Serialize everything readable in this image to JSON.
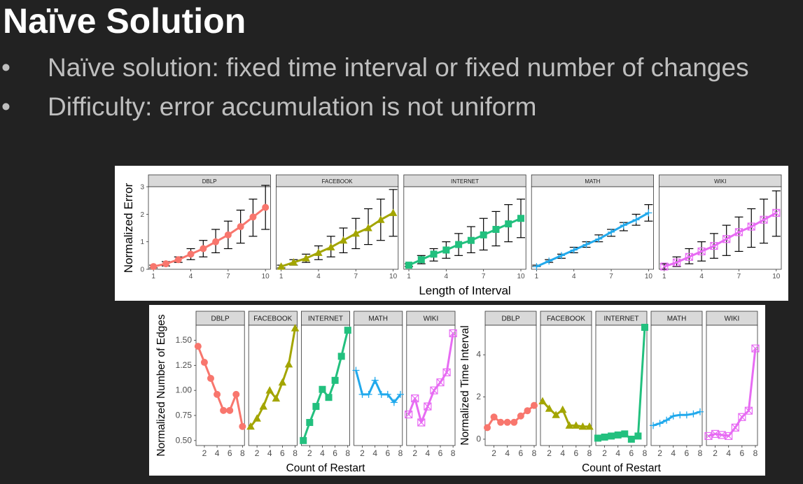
{
  "slide": {
    "title": "Naïve Solution",
    "bullets": [
      {
        "marker": "•",
        "text": "Naïve solution: fixed time interval or fixed number of changes"
      },
      {
        "marker": "•",
        "text": "Difficulty: error accumulation is not uniform"
      }
    ]
  },
  "colors": {
    "DBLP": "#f8766d",
    "FACEBOOK": "#a3a500",
    "INTERNET": "#22c07e",
    "MATH": "#21a9ec",
    "WIKI": "#e76bf3"
  },
  "chart_data": [
    {
      "type": "line",
      "title": "",
      "xlabel": "Length of Interval",
      "ylabel": "Normalized Error",
      "panels": [
        "DBLP",
        "FACEBOOK",
        "INTERNET",
        "MATH",
        "WIKI"
      ],
      "xlim": [
        1,
        10
      ],
      "ylim": [
        0,
        3
      ],
      "xticks": [
        1,
        4,
        7,
        10
      ],
      "yticks": [
        0,
        1,
        2,
        3
      ],
      "x": [
        1,
        2,
        3,
        4,
        5,
        6,
        7,
        8,
        9,
        10
      ],
      "error_bars": true,
      "series": [
        {
          "name": "DBLP",
          "values": [
            0.1,
            0.2,
            0.35,
            0.55,
            0.75,
            1.0,
            1.25,
            1.55,
            1.9,
            2.25
          ],
          "err_low": [
            0.05,
            0.12,
            0.25,
            0.35,
            0.45,
            0.6,
            0.75,
            0.95,
            1.2,
            1.45
          ],
          "err_high": [
            0.15,
            0.28,
            0.45,
            0.75,
            1.05,
            1.45,
            1.75,
            2.15,
            2.55,
            3.05
          ]
        },
        {
          "name": "FACEBOOK",
          "values": [
            0.1,
            0.25,
            0.4,
            0.6,
            0.8,
            1.05,
            1.3,
            1.5,
            1.8,
            2.05
          ],
          "err_low": [
            0.05,
            0.15,
            0.25,
            0.35,
            0.45,
            0.6,
            0.75,
            0.9,
            1.05,
            1.2
          ],
          "err_high": [
            0.15,
            0.35,
            0.55,
            0.85,
            1.2,
            1.5,
            1.85,
            2.2,
            2.55,
            2.9
          ]
        },
        {
          "name": "INTERNET",
          "values": [
            0.15,
            0.35,
            0.55,
            0.7,
            0.9,
            1.05,
            1.25,
            1.45,
            1.65,
            1.85
          ],
          "err_low": [
            0.1,
            0.2,
            0.3,
            0.4,
            0.5,
            0.6,
            0.7,
            0.85,
            1.0,
            1.15
          ],
          "err_high": [
            0.2,
            0.5,
            0.75,
            1.0,
            1.3,
            1.55,
            1.85,
            2.1,
            2.35,
            2.55
          ]
        },
        {
          "name": "MATH",
          "values": [
            0.1,
            0.3,
            0.5,
            0.7,
            0.9,
            1.1,
            1.35,
            1.6,
            1.8,
            2.05
          ],
          "err_low": [
            0.1,
            0.25,
            0.4,
            0.6,
            0.8,
            1.0,
            1.2,
            1.4,
            1.6,
            1.75
          ],
          "err_high": [
            0.15,
            0.35,
            0.55,
            0.8,
            1.0,
            1.25,
            1.45,
            1.7,
            2.0,
            2.35
          ]
        },
        {
          "name": "WIKI",
          "values": [
            0.1,
            0.25,
            0.45,
            0.65,
            0.85,
            1.1,
            1.35,
            1.55,
            1.8,
            2.05
          ],
          "err_low": [
            0.0,
            0.1,
            0.2,
            0.3,
            0.4,
            0.5,
            0.65,
            0.8,
            0.95,
            1.2
          ],
          "err_high": [
            0.2,
            0.45,
            0.75,
            1.0,
            1.3,
            1.6,
            1.9,
            2.2,
            2.55,
            2.85
          ]
        }
      ]
    },
    {
      "type": "line",
      "title": "",
      "xlabel": "Count of Restart",
      "ylabel": "Normalized Number of Edges",
      "panels": [
        "DBLP",
        "FACEBOOK",
        "INTERNET",
        "MATH",
        "WIKI"
      ],
      "xlim": [
        1,
        8
      ],
      "ylim": [
        0.45,
        1.65
      ],
      "xticks": [
        2,
        4,
        6,
        8
      ],
      "yticks": [
        0.5,
        0.75,
        1.0,
        1.25,
        1.5
      ],
      "ytick_labels": [
        "0.50",
        "0.75",
        "1.00",
        "1.25",
        "1.50"
      ],
      "x": [
        1,
        2,
        3,
        4,
        5,
        6,
        7,
        8
      ],
      "series": [
        {
          "name": "DBLP",
          "values": [
            1.44,
            1.28,
            1.12,
            0.96,
            0.8,
            0.8,
            0.96,
            0.64
          ]
        },
        {
          "name": "FACEBOOK",
          "values": [
            0.64,
            0.72,
            0.84,
            1.0,
            0.92,
            1.08,
            1.26,
            1.62
          ]
        },
        {
          "name": "INTERNET",
          "values": [
            0.5,
            0.68,
            0.84,
            1.01,
            0.93,
            1.1,
            1.34,
            1.6
          ]
        },
        {
          "name": "MATH",
          "values": [
            1.2,
            0.96,
            0.96,
            1.1,
            0.96,
            0.96,
            0.88,
            0.96
          ]
        },
        {
          "name": "WIKI",
          "values": [
            0.76,
            0.92,
            0.68,
            0.84,
            1.0,
            1.08,
            1.18,
            1.57
          ]
        }
      ]
    },
    {
      "type": "line",
      "title": "",
      "xlabel": "Count of Restart",
      "ylabel": "Normalized Time Interval",
      "panels": [
        "DBLP",
        "FACEBOOK",
        "INTERNET",
        "MATH",
        "WIKI"
      ],
      "xlim": [
        1,
        8
      ],
      "ylim": [
        -0.3,
        5.4
      ],
      "xticks": [
        2,
        4,
        6,
        8
      ],
      "yticks": [
        0,
        2,
        4
      ],
      "x": [
        1,
        2,
        3,
        4,
        5,
        6,
        7,
        8
      ],
      "series": [
        {
          "name": "DBLP",
          "values": [
            0.55,
            1.05,
            0.8,
            0.8,
            0.8,
            1.1,
            1.35,
            1.6
          ]
        },
        {
          "name": "FACEBOOK",
          "values": [
            1.8,
            1.45,
            1.15,
            1.4,
            0.65,
            0.65,
            0.6,
            0.6
          ]
        },
        {
          "name": "INTERNET",
          "values": [
            0.05,
            0.1,
            0.15,
            0.2,
            0.25,
            0.0,
            0.15,
            5.3
          ]
        },
        {
          "name": "MATH",
          "values": [
            0.65,
            0.75,
            0.9,
            1.1,
            1.15,
            1.15,
            1.2,
            1.3
          ]
        },
        {
          "name": "WIKI",
          "values": [
            0.15,
            0.25,
            0.2,
            0.15,
            0.55,
            1.05,
            1.35,
            4.3
          ]
        }
      ]
    }
  ]
}
